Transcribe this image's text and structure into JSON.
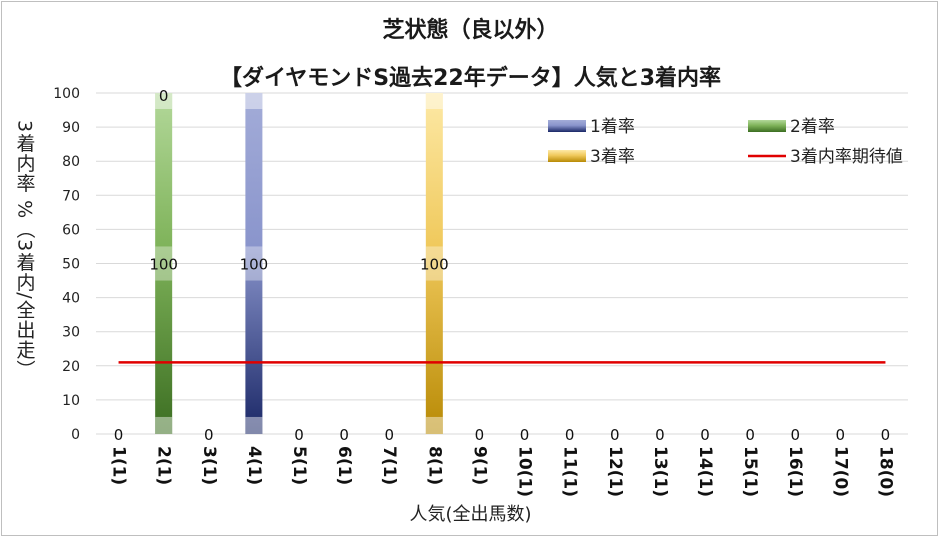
{
  "chart_data": {
    "type": "bar",
    "title": "芝状態（良以外）",
    "subtitle": "【ダイヤモンドS過去22年データ】人気と3着内率",
    "xlabel": "人気(全出馬数)",
    "ylabel": "3着内率 %（3着内/全出走）",
    "ylim": [
      0,
      100
    ],
    "yticks": [
      "0",
      "10",
      "20",
      "30",
      "40",
      "50",
      "60",
      "70",
      "80",
      "90",
      "100"
    ],
    "categories": [
      "1(1)",
      "2(1)",
      "3(1)",
      "4(1)",
      "5(1)",
      "6(1)",
      "7(1)",
      "8(1)",
      "9(1)",
      "10(1)",
      "11(1)",
      "12(1)",
      "13(1)",
      "14(1)",
      "15(1)",
      "16(1)",
      "17(0)",
      "18(0)"
    ],
    "series": [
      {
        "name": "1着率",
        "values": [
          0,
          0,
          0,
          100,
          0,
          0,
          0,
          0,
          0,
          0,
          0,
          0,
          0,
          0,
          0,
          0,
          0,
          0
        ],
        "color": "#2b3a8c"
      },
      {
        "name": "2着率",
        "values": [
          0,
          100,
          0,
          0,
          0,
          0,
          0,
          0,
          0,
          0,
          0,
          0,
          0,
          0,
          0,
          0,
          0,
          0
        ],
        "color": "#4a8a2a"
      },
      {
        "name": "3着率",
        "values": [
          0,
          0,
          0,
          0,
          0,
          0,
          0,
          100,
          0,
          0,
          0,
          0,
          0,
          0,
          0,
          0,
          0,
          0
        ],
        "color": "#c8960a"
      }
    ],
    "bar_labels": [
      "0",
      "100",
      "0",
      "100",
      "0",
      "0",
      "0",
      "100",
      "0",
      "0",
      "0",
      "0",
      "0",
      "0",
      "0",
      "0",
      "0",
      "0"
    ],
    "bar_top_label": {
      "category_index": 1,
      "text": "0"
    },
    "expected_line": {
      "name": "3着内率期待値",
      "value": 21,
      "color": "#e00000"
    },
    "legend_position": "top-right",
    "grid": true
  }
}
